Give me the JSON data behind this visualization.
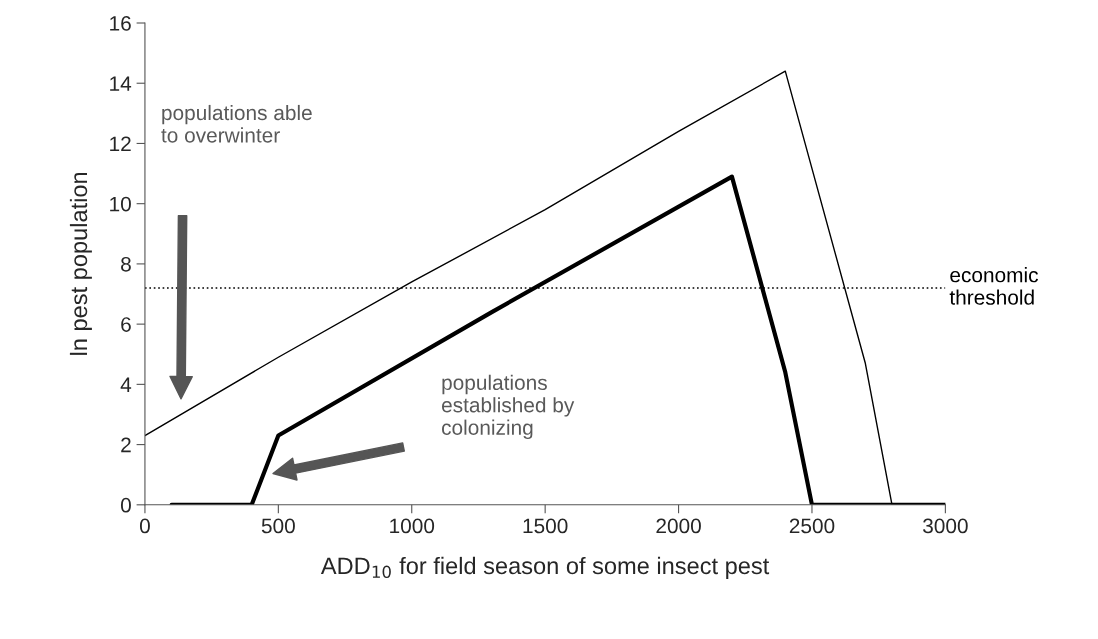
{
  "chart_data": {
    "type": "line",
    "xlabel": "ADD$_{10}$ for field season of some insect pest",
    "ylabel": "ln pest population",
    "xlim": [
      0,
      3000
    ],
    "xticks": [
      0,
      500,
      1000,
      1500,
      2000,
      2500,
      3000
    ],
    "ylim": [
      0,
      16
    ],
    "yticks": [
      0,
      2,
      4,
      6,
      8,
      10,
      12,
      14,
      16
    ],
    "grid": false,
    "legend": false,
    "marker": "none",
    "line_style": "solid",
    "series": [
      {
        "color": "#000000",
        "x": [
          0,
          500,
          1000,
          1500,
          2000,
          2400,
          2700,
          2800,
          3000
        ],
        "values": [
          2.3,
          4.9,
          7.4,
          9.8,
          12.4,
          14.4,
          4.7,
          0,
          0
        ]
      },
      {
        "color": "#000000",
        "x": [
          100,
          400,
          500,
          1300,
          2200,
          2400,
          2500,
          3000
        ],
        "values": [
          0,
          0,
          2.3,
          6.4,
          10.9,
          4.4,
          0,
          0
        ]
      }
    ],
    "ref_lines": [
      {
        "axis": "y",
        "value": 7.2,
        "label": "economic\nthreshold",
        "color": "#000000",
        "line_style": "dotted"
      }
    ],
    "annotations": [
      "populations able\nto overwinter",
      "populations\nestablished by\ncolonizing"
    ]
  }
}
